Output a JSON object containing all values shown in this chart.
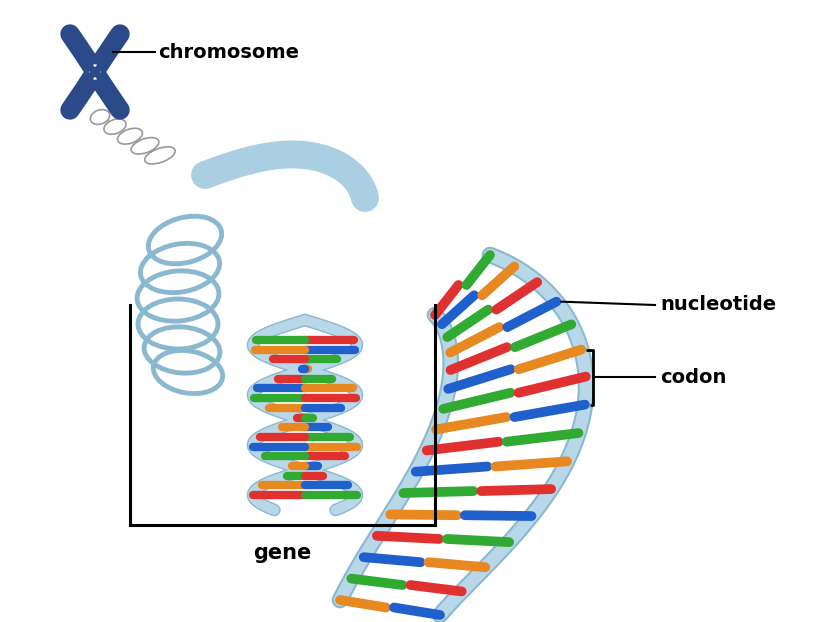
{
  "background_color": "#ffffff",
  "fig_width": 8.17,
  "fig_height": 6.22,
  "dpi": 100,
  "chromosome_color": "#2a4a8a",
  "chromatin_color": "#b8d8ea",
  "dna_backbone_color": "#b8d8ea",
  "nucleotide_colors": [
    "#e03030",
    "#2060cc",
    "#30aa30",
    "#e88820"
  ],
  "label_chromosome": "chromosome",
  "label_gene": "gene",
  "label_nucleotide": "nucleotide",
  "label_codon": "codon",
  "font_size_labels": 13,
  "gene_box_color": "#000000",
  "annotation_line_color": "#000000",
  "solenoid_edge_color": "#8ab0c8",
  "coil_edge_color": "#aaaaaa"
}
